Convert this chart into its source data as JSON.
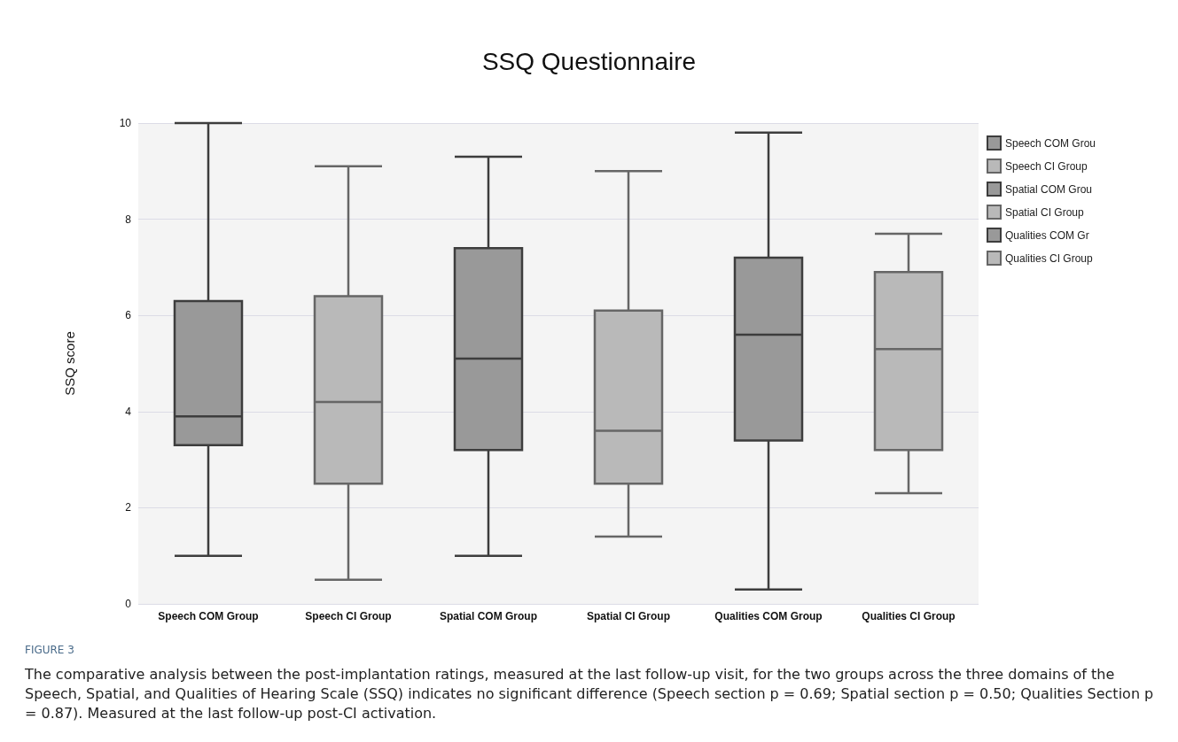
{
  "chart_data": {
    "type": "box",
    "title": "SSQ Questionnaire",
    "ylabel": "SSQ score",
    "categories": [
      "Speech COM Group",
      "Speech CI Group",
      "Spatial COM Group",
      "Spatial CI Group",
      "Qualities COM Group",
      "Qualities CI Group"
    ],
    "series": [
      {
        "name": "Speech COM Grou",
        "color": "#999999",
        "boxes": [
          {
            "low": 1,
            "q1": 3.3,
            "median": 3.9,
            "q3": 6.3,
            "high": 10
          },
          null,
          null,
          null,
          null,
          null
        ]
      },
      {
        "name": "Speech CI Group",
        "color": "#b9b9b9",
        "boxes": [
          null,
          {
            "low": 0.5,
            "q1": 2.5,
            "median": 4.2,
            "q3": 6.4,
            "high": 9.1
          },
          null,
          null,
          null,
          null
        ]
      },
      {
        "name": "Spatial COM Grou",
        "color": "#999999",
        "boxes": [
          null,
          null,
          {
            "low": 1,
            "q1": 3.2,
            "median": 5.1,
            "q3": 7.4,
            "high": 9.3
          },
          null,
          null,
          null
        ]
      },
      {
        "name": "Spatial CI Group",
        "color": "#b9b9b9",
        "boxes": [
          null,
          null,
          null,
          {
            "low": 1.4,
            "q1": 2.5,
            "median": 3.6,
            "q3": 6.1,
            "high": 9
          },
          null,
          null
        ]
      },
      {
        "name": "Qualities COM Gr",
        "color": "#999999",
        "boxes": [
          null,
          null,
          null,
          null,
          {
            "low": 0.3,
            "q1": 3.4,
            "median": 5.6,
            "q3": 7.2,
            "high": 9.8
          },
          null
        ]
      },
      {
        "name": "Qualities CI Group",
        "color": "#b9b9b9",
        "boxes": [
          null,
          null,
          null,
          null,
          null,
          {
            "low": 2.3,
            "q1": 3.2,
            "median": 5.3,
            "q3": 6.9,
            "high": 7.7
          }
        ]
      }
    ],
    "ylim": [
      0,
      10
    ],
    "yticks": [
      0,
      2,
      4,
      6,
      8,
      10
    ],
    "grid": "y",
    "legend": "top right",
    "annotations": [
      "FIGURE 3",
      "The comparative analysis between the post-implantation ratings, measured at the last follow-up visit, for the two groups across the three domains of the Speech, Spatial, and Qualities of Hearing Scale (SSQ) indicates no significant difference (Speech section p = 0.69; Spatial section p = 0.50; Qualities Section p = 0.87). Measured at the last follow-up post-CI activation."
    ]
  }
}
